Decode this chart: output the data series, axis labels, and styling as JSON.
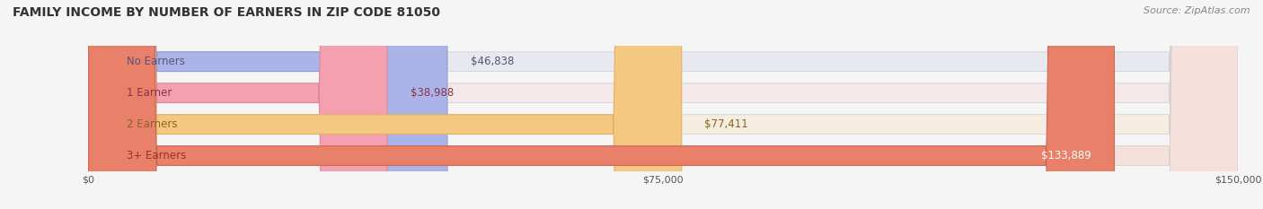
{
  "title": "FAMILY INCOME BY NUMBER OF EARNERS IN ZIP CODE 81050",
  "source": "Source: ZipAtlas.com",
  "categories": [
    "No Earners",
    "1 Earner",
    "2 Earners",
    "3+ Earners"
  ],
  "values": [
    46838,
    38988,
    77411,
    133889
  ],
  "bar_colors": [
    "#aab4e8",
    "#f4a0b0",
    "#f5c882",
    "#e8806a"
  ],
  "bar_edge_colors": [
    "#9099cc",
    "#e08898",
    "#e0b060",
    "#cc6655"
  ],
  "bg_colors": [
    "#e8e8f0",
    "#f5e8ea",
    "#f5ede0",
    "#f5e0dc"
  ],
  "label_colors": [
    "#555577",
    "#883344",
    "#886622",
    "#993322"
  ],
  "value_colors": [
    "#555577",
    "#883344",
    "#555577",
    "#ffffff"
  ],
  "xlim": [
    0,
    150000
  ],
  "xticks": [
    0,
    75000,
    150000
  ],
  "xticklabels": [
    "$0",
    "$75,000",
    "$150,000"
  ],
  "title_fontsize": 10,
  "source_fontsize": 8,
  "bar_label_fontsize": 8.5,
  "value_label_fontsize": 8.5,
  "background_color": "#f5f5f5"
}
